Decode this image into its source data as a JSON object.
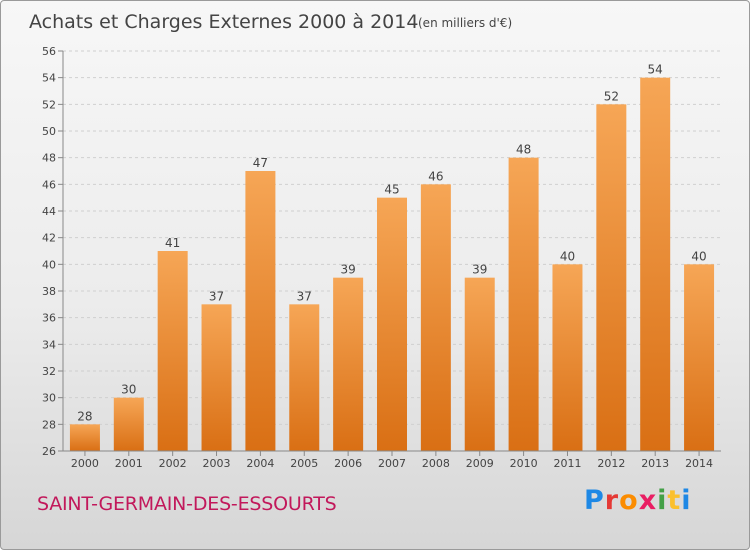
{
  "header": {
    "title": "Achats et Charges Externes 2000 à 2014",
    "subtitle": "(en milliers d'€)"
  },
  "footer": {
    "commune": "SAINT-GERMAIN-DES-ESSOURTS"
  },
  "logo": {
    "text": "Proxiti",
    "letter_colors": [
      "#1e88e5",
      "#e53935",
      "#fb8c00",
      "#e91e63",
      "#43a047",
      "#fbc02d",
      "#1e88e5"
    ]
  },
  "colors": {
    "bar_top": "#f6a656",
    "bar_bottom": "#d96f14",
    "grid": "#cfcfcf",
    "axis": "#888888",
    "commune": "#c2185b"
  },
  "chart_data": {
    "type": "bar",
    "title": "Achats et Charges Externes 2000 à 2014",
    "subtitle": "(en milliers d'€)",
    "categories": [
      "2000",
      "2001",
      "2002",
      "2003",
      "2004",
      "2005",
      "2006",
      "2007",
      "2008",
      "2009",
      "2010",
      "2011",
      "2012",
      "2013",
      "2014"
    ],
    "values": [
      28,
      30,
      41,
      37,
      47,
      37,
      39,
      45,
      46,
      39,
      48,
      40,
      52,
      54,
      40
    ],
    "ylim": [
      26,
      56
    ],
    "yticks": [
      26,
      28,
      30,
      32,
      34,
      36,
      38,
      40,
      42,
      44,
      46,
      48,
      50,
      52,
      54,
      56
    ],
    "grid": true
  }
}
